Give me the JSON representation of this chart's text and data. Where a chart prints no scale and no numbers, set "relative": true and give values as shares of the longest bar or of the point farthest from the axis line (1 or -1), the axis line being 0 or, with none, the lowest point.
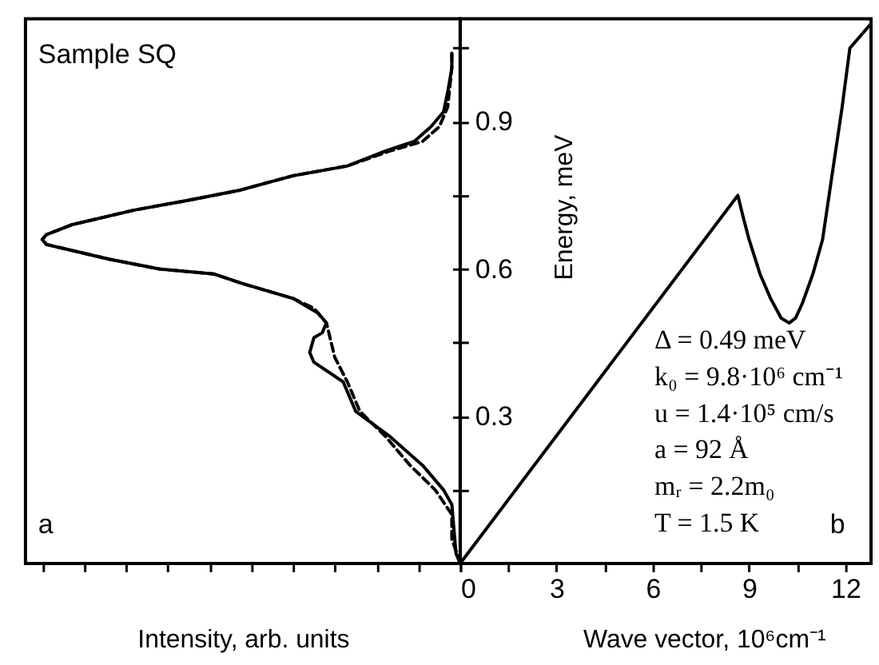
{
  "chart_data": [
    {
      "type": "line",
      "orientation": "horizontal",
      "relative": true,
      "xlabel": "Intensity, arb. units",
      "ylim": [
        0,
        1.11
      ],
      "yticks": [
        {
          "value": 0.15,
          "label": null
        },
        0.3,
        {
          "value": 0.45,
          "label": null
        },
        0.6,
        {
          "value": 0.75,
          "label": null
        },
        0.9,
        {
          "value": 1.05,
          "label": null
        }
      ],
      "tick_labels": false,
      "line_style": "solid",
      "annotations": [
        "Sample SQ",
        "a"
      ],
      "series": [
        {
          "color": "#000000",
          "x": [
            0,
            0.02,
            0.12,
            0.15,
            0.2,
            0.26,
            0.31,
            0.37,
            0.41,
            0.43,
            0.46,
            0.47,
            0.49,
            0.51,
            0.54,
            0.57,
            0.59,
            0.6,
            0.62,
            0.64,
            0.65,
            0.66,
            0.67,
            0.69,
            0.72,
            0.74,
            0.76,
            0.79,
            0.81,
            0.84,
            0.86,
            0.89,
            0.92,
            0.96,
            1.01,
            1.04
          ],
          "values": [
            0,
            -0.01,
            -0.02,
            -0.04,
            -0.09,
            -0.17,
            -0.25,
            -0.28,
            -0.35,
            -0.36,
            -0.35,
            -0.33,
            -0.32,
            -0.34,
            -0.4,
            -0.52,
            -0.59,
            -0.72,
            -0.84,
            -0.94,
            -0.99,
            -1,
            -0.99,
            -0.93,
            -0.78,
            -0.65,
            -0.53,
            -0.4,
            -0.27,
            -0.18,
            -0.11,
            -0.07,
            -0.04,
            -0.03,
            -0.02,
            -0.02
          ]
        },
        {
          "color": "#000000",
          "line_style": "dashed",
          "x": [
            0,
            0.05,
            0.1,
            0.15,
            0.2,
            0.26,
            0.31,
            0.37,
            0.42,
            0.49,
            0.52,
            0.54,
            0.57,
            0.59,
            0.6,
            0.62,
            0.64,
            0.65,
            0.66,
            0.67,
            0.69,
            0.72,
            0.74,
            0.76,
            0.79,
            0.81,
            0.84,
            0.86,
            0.89,
            0.93,
            1.01,
            1.04
          ],
          "values": [
            0,
            -0.02,
            -0.02,
            -0.06,
            -0.12,
            -0.18,
            -0.24,
            -0.27,
            -0.3,
            -0.32,
            -0.35,
            -0.4,
            -0.52,
            -0.59,
            -0.72,
            -0.84,
            -0.94,
            -0.99,
            -1,
            -0.99,
            -0.93,
            -0.78,
            -0.65,
            -0.53,
            -0.4,
            -0.27,
            -0.17,
            -0.09,
            -0.05,
            -0.03,
            -0.02,
            -0.02
          ]
        }
      ]
    },
    {
      "type": "line",
      "xlabel": "Wave vector, 10⁶cm⁻¹",
      "ylabel": "Energy, meV",
      "color": "#000000",
      "line_style": "solid",
      "x": [
        0,
        8.65,
        8.8,
        9.0,
        9.34,
        9.67,
        10.0,
        10.25,
        10.45,
        10.66,
        10.99,
        11.29,
        11.65,
        11.9,
        12.14,
        12.8
      ],
      "values": [
        0,
        0.75,
        0.71,
        0.66,
        0.59,
        0.54,
        0.5,
        0.49,
        0.5,
        0.53,
        0.59,
        0.66,
        0.82,
        0.93,
        1.05,
        1.1
      ],
      "xlim": [
        0,
        12.8
      ],
      "xticks": [
        0,
        {
          "value": 1.5,
          "label": null
        },
        3,
        {
          "value": 4.5,
          "label": null
        },
        6,
        {
          "value": 7.5,
          "label": null
        },
        9,
        {
          "value": 10.5,
          "label": null
        },
        12
      ],
      "ylim": [
        0,
        1.11
      ],
      "yticks": [
        {
          "value": 0.15,
          "label": null
        },
        0.3,
        {
          "value": 0.45,
          "label": null
        },
        0.6,
        {
          "value": 0.75,
          "label": null
        },
        0.9,
        {
          "value": 1.05,
          "label": null
        }
      ],
      "annotations": [
        "Δ = 0.49 meV",
        "k₀ = 9.8·10⁶ cm⁻¹",
        "u = 1.4·10⁵ cm/s",
        "a = 92 Å",
        "mᵣ = 2.2m₀",
        "T = 1.5 K",
        "b"
      ]
    }
  ]
}
